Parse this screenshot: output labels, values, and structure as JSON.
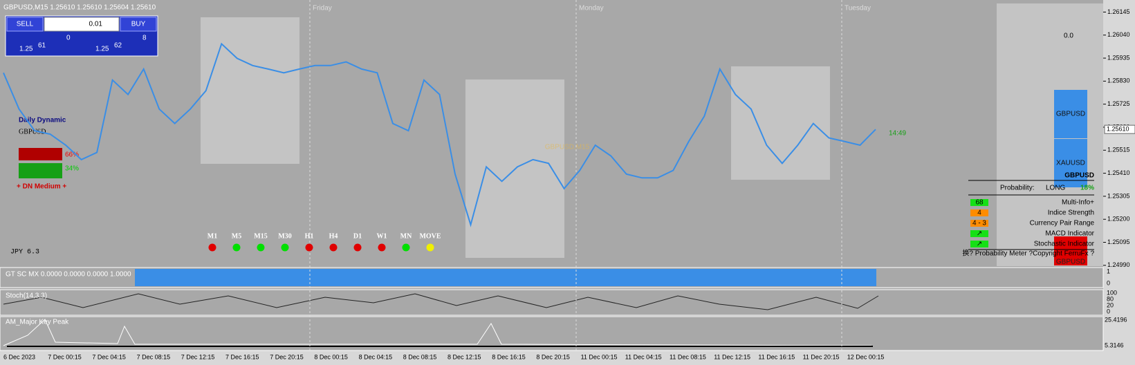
{
  "header": {
    "symbol_line": "GBPUSD,M15  1.25610 1.25610 1.25604 1.25610"
  },
  "trade_panel": {
    "sell": "SELL",
    "buy": "BUY",
    "lot": "0.01",
    "bid_prefix": "1.25",
    "bid_big": "61",
    "bid_sup": "0",
    "ask_prefix": "1.25",
    "ask_big": "62",
    "ask_sup": "8"
  },
  "chart": {
    "ylim": [
      1.262,
      1.2498
    ],
    "price_ticks": [
      1.26145,
      {
        "value": 1.2604,
        "label": "1.26040"
      },
      1.25935,
      {
        "value": 1.2583,
        "label": "1.25830"
      },
      1.25725,
      {
        "value": 1.2562,
        "label": "1.25620"
      },
      1.25515,
      {
        "value": 1.2541,
        "label": "1.25410"
      },
      1.25305,
      {
        "value": 1.252,
        "label": "1.25200"
      },
      1.25095,
      {
        "value": 1.2499,
        "label": "1.24990"
      }
    ],
    "current_price": {
      "value": 1.2561,
      "label": "1.25610"
    },
    "closes": [
      1.25868,
      1.25703,
      1.25604,
      1.25588,
      1.25538,
      1.25472,
      1.25505,
      1.25835,
      1.25769,
      1.25885,
      1.25703,
      1.25637,
      1.25703,
      1.25786,
      1.26,
      1.25934,
      1.25901,
      1.25885,
      1.25868,
      1.25885,
      1.25901,
      1.25901,
      1.25918,
      1.25885,
      1.25868,
      1.25637,
      1.25604,
      1.25835,
      1.25769,
      1.25406,
      1.25175,
      1.25439,
      1.25373,
      1.25439,
      1.25472,
      1.25455,
      1.2534,
      1.25423,
      1.25538,
      1.25489,
      1.25406,
      1.25389,
      1.25389,
      1.25423,
      1.25555,
      1.2567,
      1.25885,
      1.25769,
      1.25703,
      1.25538,
      1.25455,
      1.25538,
      1.25637,
      1.25571,
      1.25555,
      1.25538,
      1.2561
    ],
    "day_labels": [
      "Friday",
      "Monday",
      "Tuesday"
    ],
    "time_labels": [
      "6 Dec 2023",
      "7 Dec 00:15",
      "7 Dec 04:15",
      "7 Dec 08:15",
      "7 Dec 12:15",
      "7 Dec 16:15",
      "7 Dec 20:15",
      "8 Dec 00:15",
      "8 Dec 04:15",
      "8 Dec 08:15",
      "8 Dec 12:15",
      "8 Dec 16:15",
      "8 Dec 20:15",
      "11 Dec 00:15",
      "11 Dec 04:15",
      "11 Dec 08:15",
      "11 Dec 12:15",
      "11 Dec 16:15",
      "11 Dec 20:15",
      "12 Dec 00:15"
    ],
    "countdown": "14:49",
    "watermark": "GBPUSD,M15"
  },
  "left_panel": {
    "title": "Daily Dynamic",
    "symbol": "GBPUSD",
    "up_pct": "66%",
    "down_pct": "34%",
    "signal": "+ DN Medium +",
    "jpy": "JPY   6.3"
  },
  "timeframes": {
    "labels": [
      "M1",
      "M5",
      "M15",
      "M30",
      "H1",
      "H4",
      "D1",
      "W1",
      "MN",
      "MOVE"
    ],
    "colors": [
      "#e00000",
      "#00e000",
      "#00e000",
      "#00e000",
      "#e00000",
      "#e00000",
      "#e00000",
      "#e00000",
      "#00e000",
      "#f0f000"
    ]
  },
  "right_panel": {
    "big_value": "0.0",
    "buttons": [
      "GBPUSD",
      "XAUUSD"
    ],
    "symbol": "GBPUSD",
    "prob_label": "Probability:",
    "direction": "LONG",
    "prob_value": "18%",
    "rows": [
      [
        "68",
        "Multi-Info+"
      ],
      [
        "4",
        "Indice Strength"
      ],
      [
        "4 - 3",
        "Currency Pair Range"
      ],
      [
        "↗",
        "MACD Indicator"
      ],
      [
        "↗",
        "Stochastic Indicator"
      ]
    ],
    "footer": "换? Probability Meter ?Copyright FerruFx ?",
    "red_button": "GBPUSD"
  },
  "indicators": {
    "gt": "GT SC MX 0.0000 0.0000 0.0000 1.0000",
    "gt_ticks": [
      "1",
      "0"
    ],
    "stoch": "Stoch(14,3,3)",
    "stoch_ticks": [
      "100",
      "80",
      "20",
      "0"
    ],
    "am": "AM_Major Key Peak",
    "am_ticks": [
      "25.4196",
      "5.3146"
    ]
  }
}
